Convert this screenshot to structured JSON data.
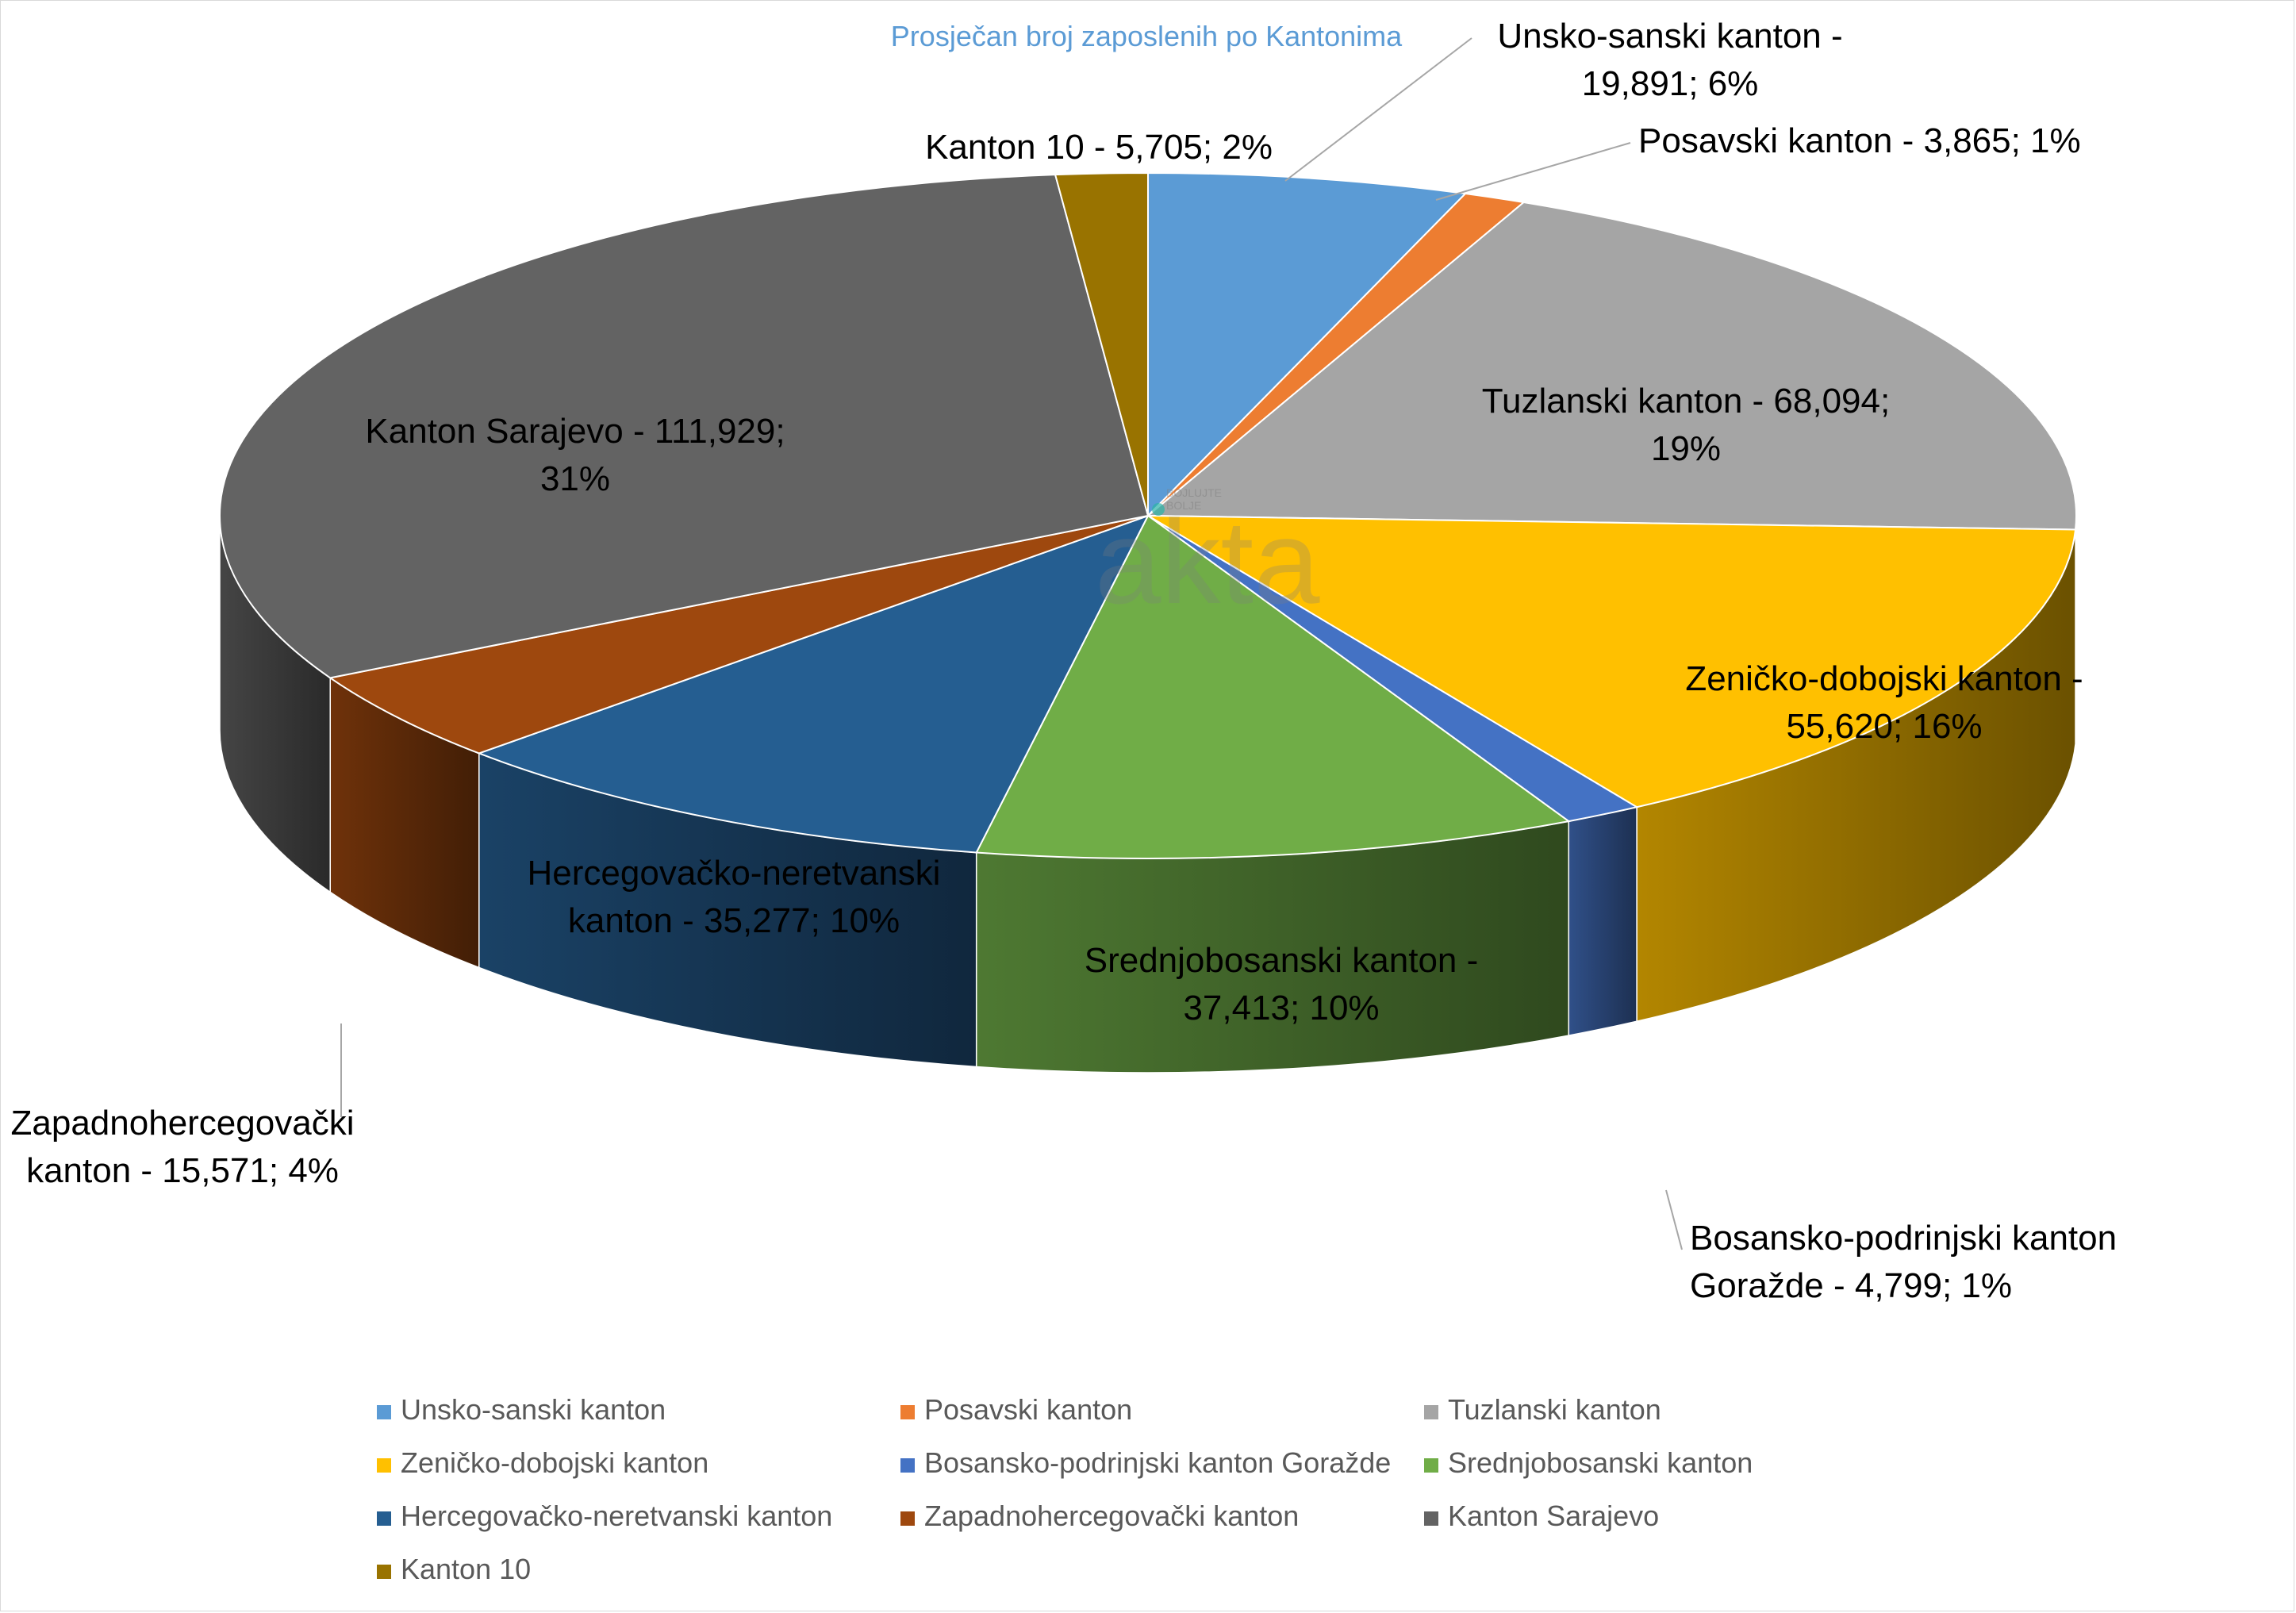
{
  "chart_data": {
    "type": "pie",
    "style": "3d",
    "title": "Prosječan broj zaposlenih po Kantonima",
    "slices": [
      {
        "name": "Unsko-sanski kanton",
        "value": 19891,
        "label": "Unsko-sanski kanton -\n19,891; 6%",
        "color": "#5b9bd5"
      },
      {
        "name": "Posavski kanton",
        "value": 3865,
        "label": "Posavski kanton - 3,865; 1%",
        "color": "#ed7d31"
      },
      {
        "name": "Tuzlanski kanton",
        "value": 68094,
        "label": "Tuzlanski kanton -  68,094;\n19%",
        "color": "#a5a5a5"
      },
      {
        "name": "Zeničko-dobojski kanton",
        "value": 55620,
        "label": "Zeničko-dobojski kanton -\n55,620; 16%",
        "color": "#ffc000"
      },
      {
        "name": "Bosansko-podrinjski kanton Goražde",
        "value": 4799,
        "label": "Bosansko-podrinjski kanton\nGoražde - 4,799; 1%",
        "color": "#4472c4"
      },
      {
        "name": "Srednjobosanski kanton",
        "value": 37413,
        "label": "Srednjobosanski kanton -\n37,413; 10%",
        "color": "#70ad47"
      },
      {
        "name": "Hercegovačko-neretvanski kanton",
        "value": 35277,
        "label": "Hercegovačko-neretvanski\nkanton - 35,277; 10%",
        "color": "#255e91"
      },
      {
        "name": "Zapadnohercegovački kanton",
        "value": 15571,
        "label": "Zapadnohercegovački\nkanton - 15,571; 4%",
        "color": "#9e480e"
      },
      {
        "name": "Kanton Sarajevo",
        "value": 111929,
        "label": "Kanton Sarajevo -  111,929;\n31%",
        "color": "#636363"
      },
      {
        "name": "Kanton 10",
        "value": 5705,
        "label": "Kanton 10 -  5,705; 2%",
        "color": "#997300"
      }
    ],
    "legend": {
      "position": "bottom",
      "columns": 3
    }
  },
  "watermark": {
    "text": "akta",
    "small_text": [
      "BOJLUJTE",
      "BOLJE"
    ]
  }
}
